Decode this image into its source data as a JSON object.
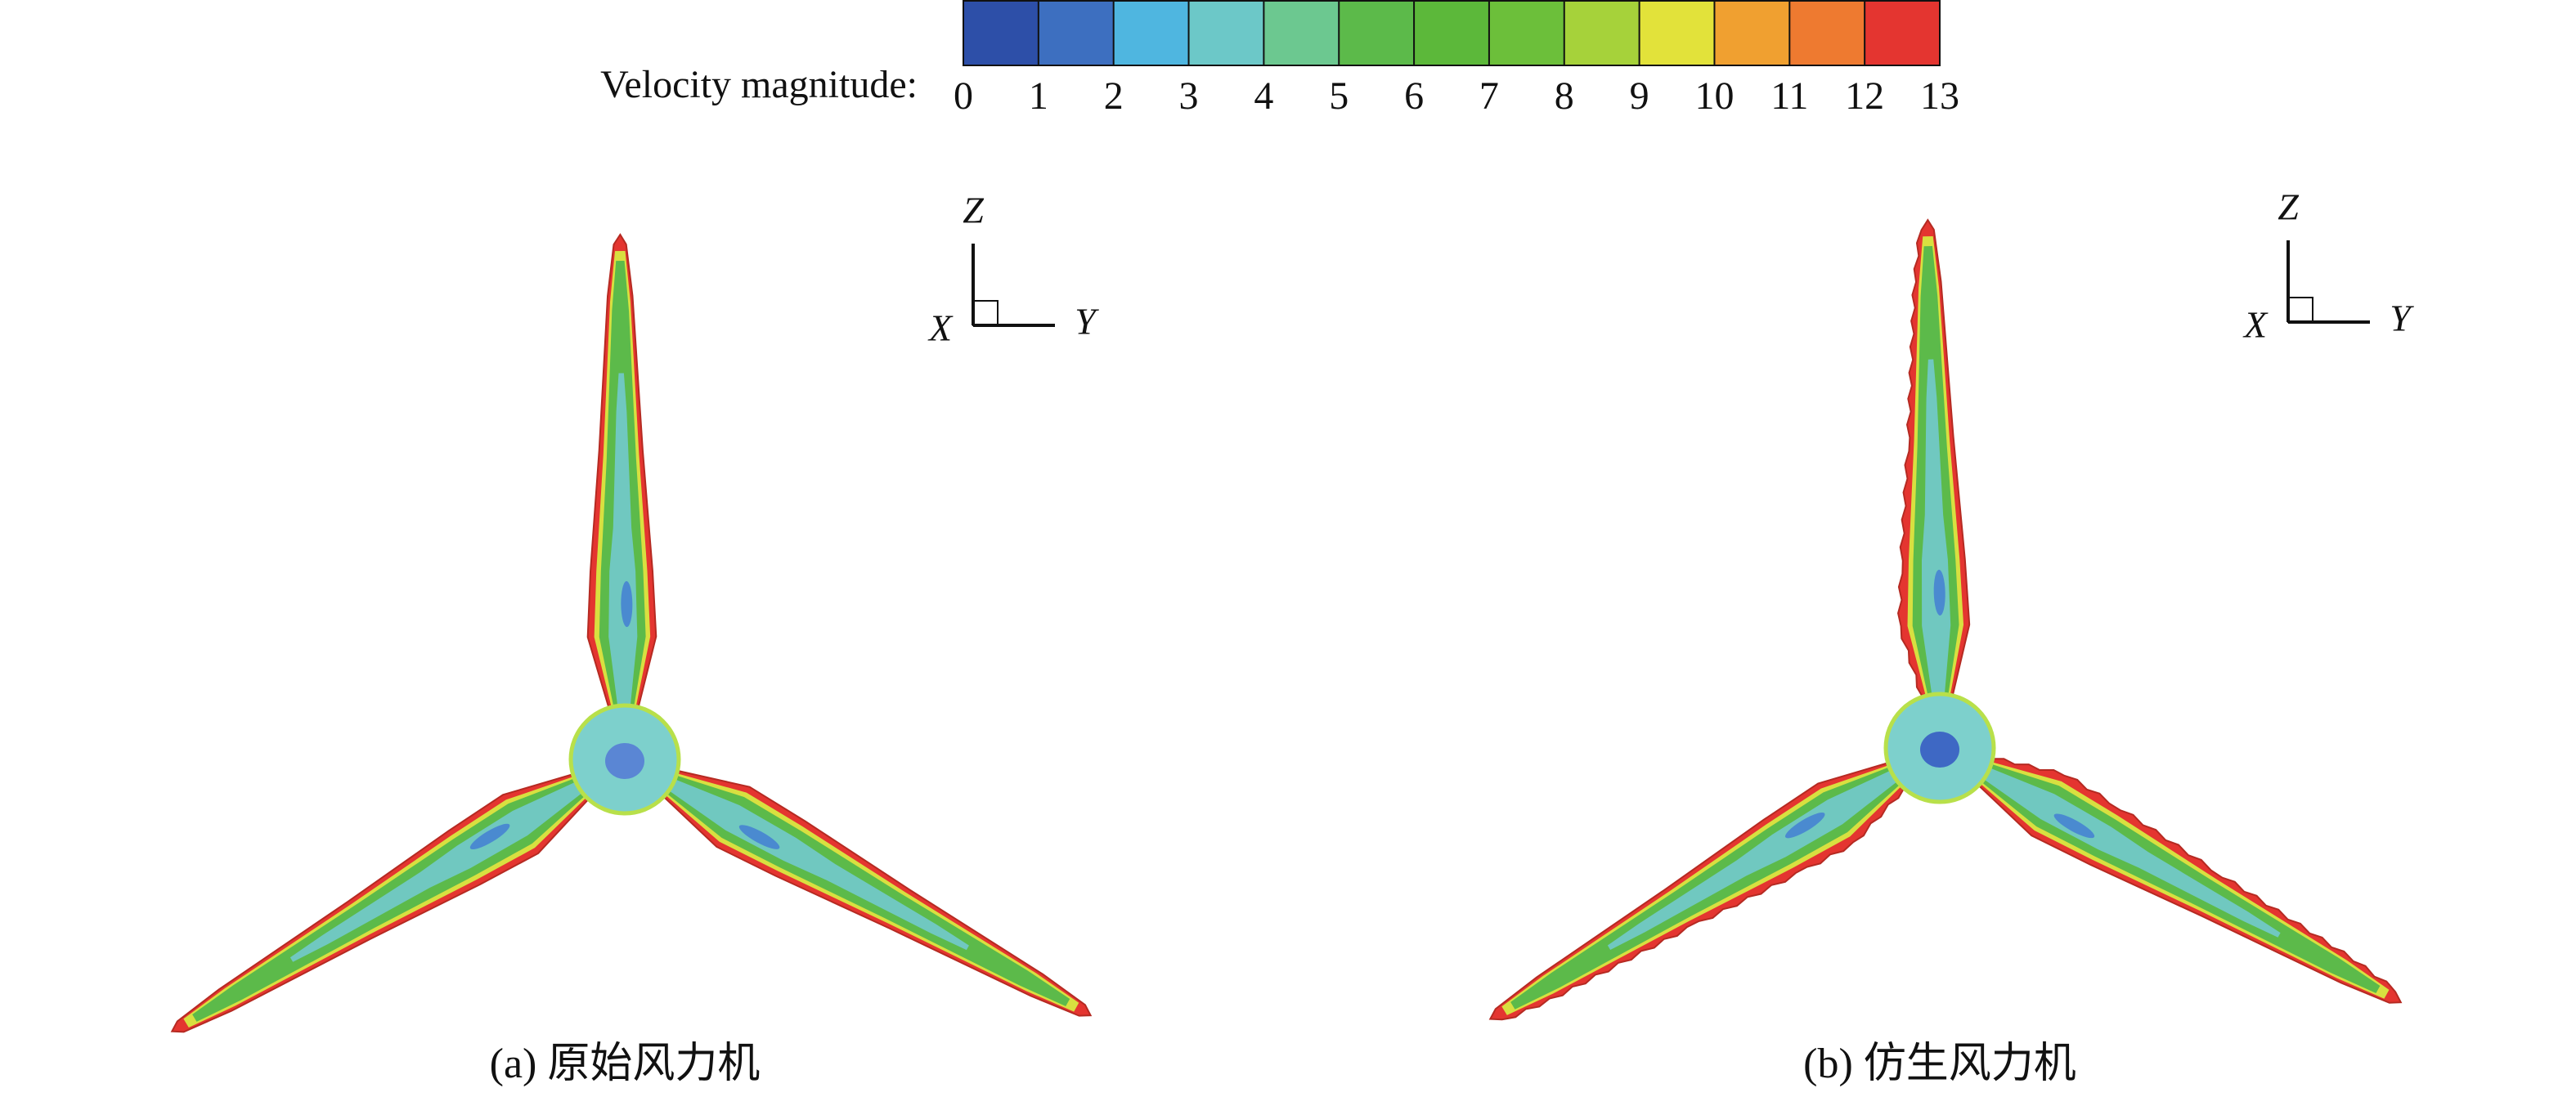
{
  "colorbar": {
    "label": "Velocity magnitude:",
    "ticks": [
      0,
      1,
      2,
      3,
      4,
      5,
      6,
      7,
      8,
      9,
      10,
      11,
      12,
      13
    ],
    "colors": [
      "#2d4fa8",
      "#3d6fc0",
      "#4fb6e0",
      "#6cc8c8",
      "#6cc890",
      "#5cba4a",
      "#5cb83a",
      "#6cbf3a",
      "#a6d23a",
      "#e2e23a",
      "#f0a030",
      "#ee7a30",
      "#e43530"
    ]
  },
  "panels": [
    {
      "caption": "(a) 原始风力机",
      "axes": {
        "z": "Z",
        "x": "X",
        "y": "Y"
      }
    },
    {
      "caption": "(b) 仿生风力机",
      "axes": {
        "z": "Z",
        "x": "X",
        "y": "Y"
      }
    }
  ]
}
